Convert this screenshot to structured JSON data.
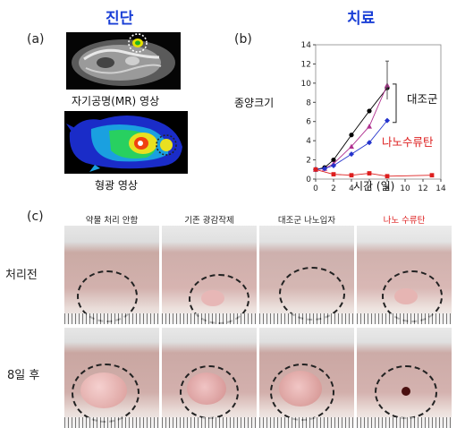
{
  "diagnosis_heading": "진단",
  "treatment_heading": "치료",
  "panel_a": "(a)",
  "panel_b": "(b)",
  "panel_c": "(c)",
  "mri_caption": "자기공명(MR) 영상",
  "fluorescence_caption": "형광 영상",
  "colors": {
    "heading": "#1a3fd6",
    "nano": "#dd1e1e"
  },
  "chart_data": {
    "type": "line",
    "xlabel": "시간 (일)",
    "ylabel": "종양크기",
    "xlim": [
      0,
      14
    ],
    "ylim": [
      0,
      14
    ],
    "xticks": [
      0,
      2,
      4,
      6,
      8,
      10,
      12,
      14
    ],
    "yticks": [
      0,
      2,
      4,
      6,
      8,
      10,
      12,
      14
    ],
    "control_label": "대조군",
    "nano_label": "나노수류탄",
    "series": [
      {
        "group": "control",
        "marker": "circle",
        "color": "#000000",
        "x": [
          0,
          1,
          2,
          4,
          6,
          8
        ],
        "y": [
          1,
          1.2,
          2,
          4.6,
          7.1,
          9.5
        ]
      },
      {
        "group": "control",
        "marker": "triangle",
        "color": "#b03090",
        "x": [
          0,
          1,
          2,
          4,
          6,
          8
        ],
        "y": [
          1,
          1.1,
          1.6,
          3.4,
          5.5,
          9.8
        ]
      },
      {
        "group": "control",
        "marker": "diamond",
        "color": "#2433cc",
        "x": [
          0,
          1,
          2,
          4,
          6,
          8
        ],
        "y": [
          1,
          1.1,
          1.4,
          2.6,
          3.8,
          6.1
        ]
      },
      {
        "group": "nano",
        "marker": "square",
        "color": "#dd1e1e",
        "x": [
          0,
          2,
          4,
          6,
          8,
          13
        ],
        "y": [
          1,
          0.5,
          0.4,
          0.6,
          0.3,
          0.4
        ]
      }
    ],
    "error_bars": {
      "x": 8,
      "y": 10.3,
      "low": 8.3,
      "high": 12.3
    }
  },
  "columns": [
    "약물 처리 안함",
    "기존 광감작제",
    "대조군 나노입자",
    "나노 수류탄"
  ],
  "rows": [
    "처리전",
    "8일 후"
  ]
}
